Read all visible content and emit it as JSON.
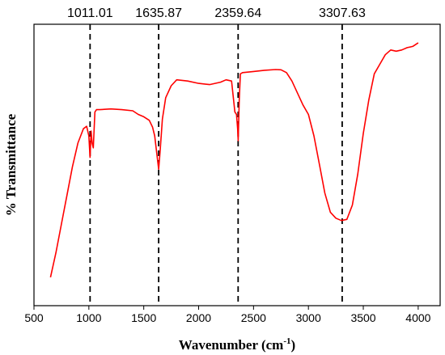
{
  "chart_data": {
    "type": "line",
    "title": "",
    "xlabel": "Wavenumber (cm",
    "xlabel_sup": "-1",
    "xlabel_close": ")",
    "ylabel": "% Transmittance",
    "xlim": [
      500,
      4200
    ],
    "ylim": [
      0,
      100
    ],
    "y_ticks_shown": false,
    "x_ticks": [
      500,
      1000,
      1500,
      2000,
      2500,
      3000,
      3500,
      4000
    ],
    "grid": false,
    "legend": "none",
    "line_color": "#ff0000",
    "marker_line_color": "#000000",
    "peak_markers": [
      {
        "x": 1011.01,
        "label": "1011.01"
      },
      {
        "x": 1635.87,
        "label": "1635.87"
      },
      {
        "x": 2359.64,
        "label": "2359.64"
      },
      {
        "x": 3307.63,
        "label": "3307.63"
      }
    ],
    "series": [
      {
        "x": [
          650,
          700,
          750,
          800,
          850,
          900,
          950,
          980,
          1000,
          1011,
          1020,
          1030,
          1040,
          1055,
          1070,
          1100,
          1200,
          1300,
          1400,
          1450,
          1500,
          1550,
          1580,
          1600,
          1620,
          1636,
          1650,
          1670,
          1700,
          1750,
          1800,
          1900,
          2000,
          2100,
          2200,
          2250,
          2300,
          2330,
          2345,
          2355,
          2360,
          2370,
          2380,
          2400,
          2500,
          2600,
          2700,
          2750,
          2800,
          2850,
          2900,
          2950,
          3000,
          3050,
          3100,
          3150,
          3200,
          3250,
          3300,
          3350,
          3400,
          3450,
          3500,
          3550,
          3600,
          3650,
          3700,
          3750,
          3800,
          3850,
          3900,
          3950,
          4000
        ],
        "y": [
          0.7,
          11,
          23,
          35,
          47,
          57,
          63,
          64,
          60,
          51,
          62,
          57,
          55,
          70,
          71,
          71,
          71.3,
          71,
          70.5,
          69,
          68,
          66.5,
          63.7,
          60,
          52,
          46,
          54,
          67,
          76,
          81,
          83.5,
          83,
          82,
          81.5,
          82.5,
          83.5,
          83,
          70,
          69,
          63,
          58,
          75,
          86,
          86.5,
          87,
          87.5,
          87.8,
          87.7,
          86.5,
          83,
          78,
          73,
          69,
          60,
          48,
          36,
          28,
          25.5,
          24.5,
          25,
          31,
          44,
          61,
          75,
          86,
          90,
          94,
          96,
          95.5,
          96,
          97,
          97.5,
          99
        ]
      }
    ]
  }
}
